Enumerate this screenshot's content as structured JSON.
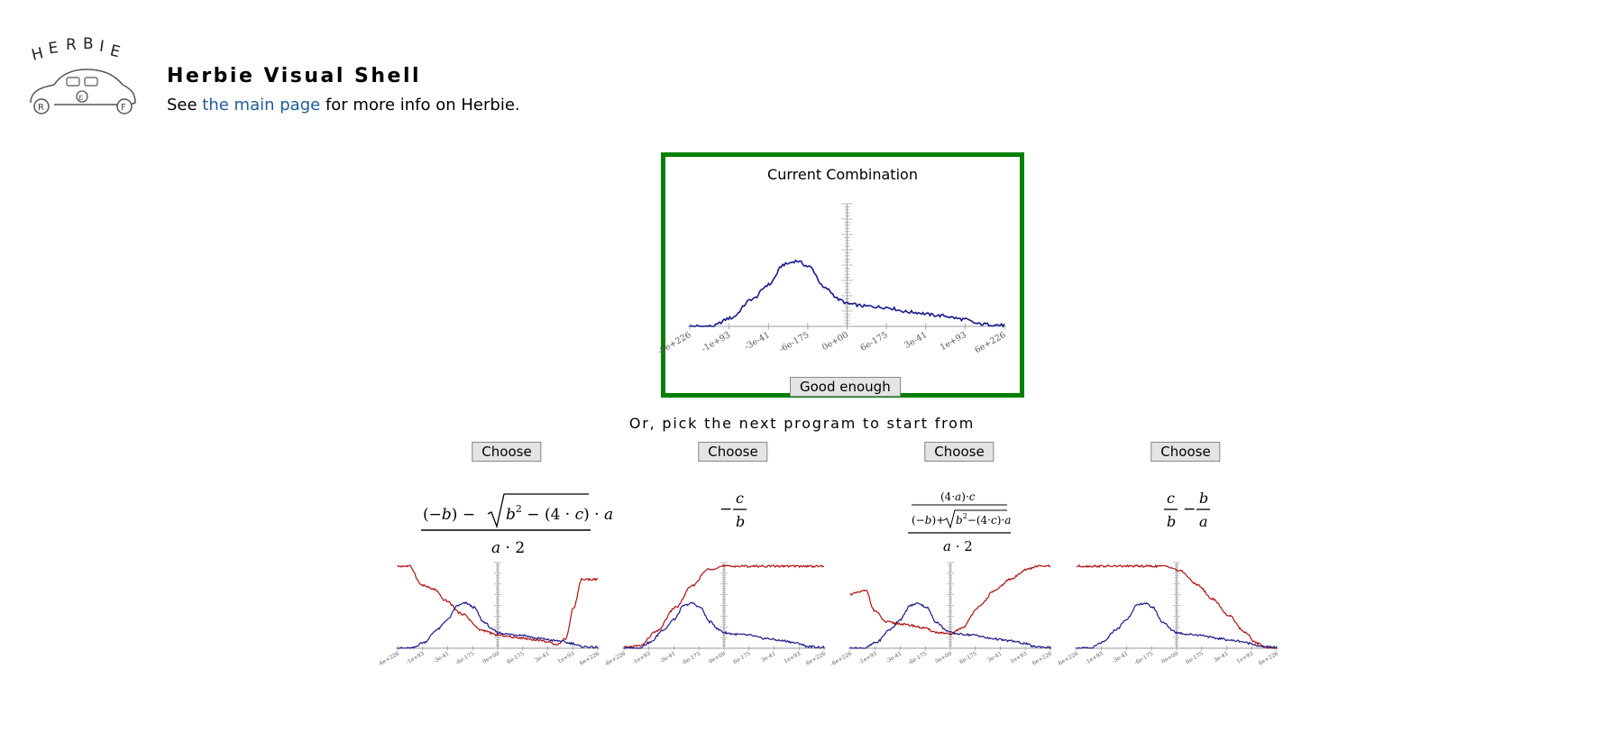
{
  "header": {
    "logo_text": "HERBIE",
    "title": "Herbie Visual Shell",
    "subtitle_prefix": "See ",
    "subtitle_link": "the main page",
    "subtitle_suffix": " for more info on Herbie."
  },
  "current": {
    "title": "Current Combination",
    "button_label": "Good enough"
  },
  "pick_text": "Or, pick the next program to start from",
  "axis_ticks": [
    "-6e+226",
    "-1e+93",
    "-3e-41",
    "-6e-175",
    "0e+00",
    "6e-175",
    "3e-41",
    "1e+93",
    "6e+226"
  ],
  "candidates": [
    {
      "button_label": "Choose",
      "formula": "((-b) - sqrt(b^2 - (4*c)*a)) / (a*2)"
    },
    {
      "button_label": "Choose",
      "formula": "-(c/b)"
    },
    {
      "button_label": "Choose",
      "formula": "((4*a)*c / ((-b) + sqrt(b^2 - (4*c)*a))) / (a*2)"
    },
    {
      "button_label": "Choose",
      "formula": "c/b - b/a"
    }
  ],
  "colors": {
    "frame": "#008000",
    "current_error": "#1a1a8c",
    "candidate_error": "#b01010",
    "link": "#1f5c99"
  }
}
